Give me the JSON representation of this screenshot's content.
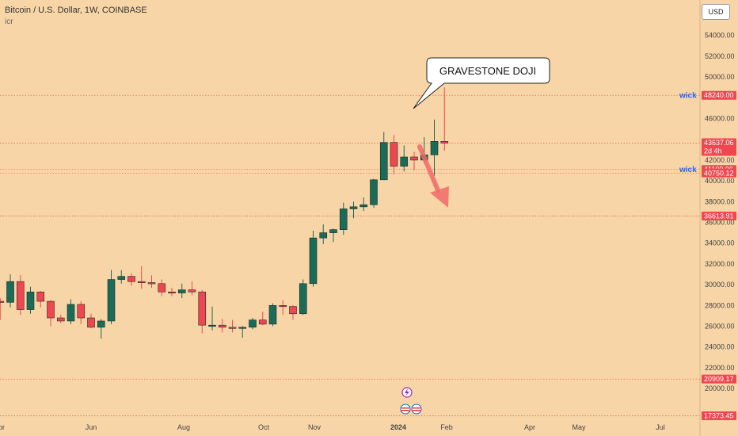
{
  "header": {
    "symbol_line": "Bitcoin / U.S. Dollar, 1W, COINBASE",
    "indicator": "icr",
    "currency_button": "USD"
  },
  "chart_data": {
    "type": "candlestick",
    "ylim": [
      16800,
      56500
    ],
    "y_ticks": [
      20000,
      22000,
      24000,
      26000,
      28000,
      30000,
      32000,
      34000,
      36000,
      38000,
      40000,
      42000,
      46000,
      50000,
      52000,
      54000
    ],
    "y_tick_labels": [
      "20000.00",
      "22000.00",
      "24000.00",
      "26000.00",
      "28000.00",
      "30000.00",
      "32000.00",
      "34000.00",
      "36000.00",
      "38000.00",
      "40000.00",
      "42000.00",
      "46000.00",
      "50000.00",
      "52000.00",
      "54000.00"
    ],
    "x_labels": [
      "Jun",
      "Aug",
      "Oct",
      "Nov",
      "2024",
      "Feb",
      "Apr",
      "May",
      "Jul"
    ],
    "x_label_partial": "Apr",
    "candles": [
      {
        "week": -1,
        "o": 28400,
        "h": 28700,
        "l": 26600,
        "c": 28300
      },
      {
        "week": 0,
        "o": 28300,
        "h": 31000,
        "l": 27800,
        "c": 30300
      },
      {
        "week": 1,
        "o": 30300,
        "h": 30900,
        "l": 27100,
        "c": 27600
      },
      {
        "week": 2,
        "o": 27600,
        "h": 29800,
        "l": 27200,
        "c": 29300
      },
      {
        "week": 3,
        "o": 29300,
        "h": 29400,
        "l": 27800,
        "c": 28400
      },
      {
        "week": 4,
        "o": 28400,
        "h": 28500,
        "l": 26000,
        "c": 26800
      },
      {
        "week": 5,
        "o": 26800,
        "h": 27100,
        "l": 26300,
        "c": 26500
      },
      {
        "week": 6,
        "o": 26500,
        "h": 28600,
        "l": 26200,
        "c": 28100
      },
      {
        "week": 7,
        "o": 28100,
        "h": 28400,
        "l": 26200,
        "c": 26800
      },
      {
        "week": 8,
        "o": 26800,
        "h": 27200,
        "l": 25800,
        "c": 25900
      },
      {
        "week": 9,
        "o": 25900,
        "h": 26700,
        "l": 24800,
        "c": 26500
      },
      {
        "week": 10,
        "o": 26500,
        "h": 31400,
        "l": 26200,
        "c": 30500
      },
      {
        "week": 11,
        "o": 30500,
        "h": 31400,
        "l": 30100,
        "c": 30800
      },
      {
        "week": 12,
        "o": 30800,
        "h": 31100,
        "l": 29900,
        "c": 30300
      },
      {
        "week": 13,
        "o": 30300,
        "h": 31800,
        "l": 29600,
        "c": 30200
      },
      {
        "week": 14,
        "o": 30200,
        "h": 30900,
        "l": 29700,
        "c": 30100
      },
      {
        "week": 15,
        "o": 30100,
        "h": 30500,
        "l": 28900,
        "c": 29300
      },
      {
        "week": 16,
        "o": 29300,
        "h": 29700,
        "l": 28900,
        "c": 29200
      },
      {
        "week": 17,
        "o": 29200,
        "h": 30100,
        "l": 28700,
        "c": 29500
      },
      {
        "week": 18,
        "o": 29500,
        "h": 30300,
        "l": 29000,
        "c": 29300
      },
      {
        "week": 19,
        "o": 29300,
        "h": 29500,
        "l": 25300,
        "c": 26100
      },
      {
        "week": 20,
        "o": 26100,
        "h": 27900,
        "l": 25600,
        "c": 26100
      },
      {
        "week": 21,
        "o": 26100,
        "h": 26700,
        "l": 25400,
        "c": 25900
      },
      {
        "week": 22,
        "o": 25900,
        "h": 26600,
        "l": 25400,
        "c": 25800
      },
      {
        "week": 23,
        "o": 25800,
        "h": 26000,
        "l": 24900,
        "c": 25900
      },
      {
        "week": 24,
        "o": 25900,
        "h": 26800,
        "l": 25700,
        "c": 26600
      },
      {
        "week": 25,
        "o": 26600,
        "h": 27400,
        "l": 26100,
        "c": 26200
      },
      {
        "week": 26,
        "o": 26200,
        "h": 28200,
        "l": 26000,
        "c": 28000
      },
      {
        "week": 27,
        "o": 28000,
        "h": 28500,
        "l": 27100,
        "c": 27900
      },
      {
        "week": 28,
        "o": 27900,
        "h": 28000,
        "l": 26600,
        "c": 27200
      },
      {
        "week": 29,
        "o": 27200,
        "h": 30500,
        "l": 27100,
        "c": 30100
      },
      {
        "week": 30,
        "o": 30100,
        "h": 35200,
        "l": 29800,
        "c": 34500
      },
      {
        "week": 31,
        "o": 34500,
        "h": 35800,
        "l": 33900,
        "c": 35000
      },
      {
        "week": 32,
        "o": 35000,
        "h": 35400,
        "l": 34100,
        "c": 35300
      },
      {
        "week": 33,
        "o": 35300,
        "h": 37900,
        "l": 34800,
        "c": 37300
      },
      {
        "week": 34,
        "o": 37300,
        "h": 38000,
        "l": 36400,
        "c": 37500
      },
      {
        "week": 35,
        "o": 37500,
        "h": 38400,
        "l": 37100,
        "c": 37700
      },
      {
        "week": 36,
        "o": 37700,
        "h": 40200,
        "l": 37400,
        "c": 40100
      },
      {
        "week": 37,
        "o": 40100,
        "h": 44700,
        "l": 40100,
        "c": 43700
      },
      {
        "week": 38,
        "o": 43700,
        "h": 44400,
        "l": 40600,
        "c": 41400
      },
      {
        "week": 39,
        "o": 41400,
        "h": 43400,
        "l": 40900,
        "c": 42300
      },
      {
        "week": 40,
        "o": 42300,
        "h": 42800,
        "l": 41000,
        "c": 42000
      },
      {
        "week": 41,
        "o": 42000,
        "h": 44200,
        "l": 41700,
        "c": 42500
      },
      {
        "week": 42,
        "o": 42500,
        "h": 45900,
        "l": 40500,
        "c": 43800
      },
      {
        "week": 43,
        "o": 43800,
        "h": 49000,
        "l": 42900,
        "c": 43637.06
      }
    ],
    "horizontal_lines": [
      {
        "value": 48240.0,
        "label": "48240.00",
        "tag": "wick"
      },
      {
        "value": 43637.06,
        "label": "43637.06",
        "extra": "2d 4h"
      },
      {
        "value": 41100.06,
        "label": "41100.06",
        "tag": "wick"
      },
      {
        "value": 40750.12,
        "label": "40750.12"
      },
      {
        "value": 36613.91,
        "label": "36613.91"
      },
      {
        "value": 20909.17,
        "label": "20909.17"
      },
      {
        "value": 17373.45,
        "label": "17373.45"
      }
    ],
    "annotation": {
      "text": "GRAVESTONE DOJI"
    },
    "colors": {
      "up": "#1a6b57",
      "down": "#ef4650",
      "bg": "#f8d5a6",
      "line": "#e0584c",
      "tag": "#2862ff",
      "arrow": "#f26a6a"
    }
  }
}
